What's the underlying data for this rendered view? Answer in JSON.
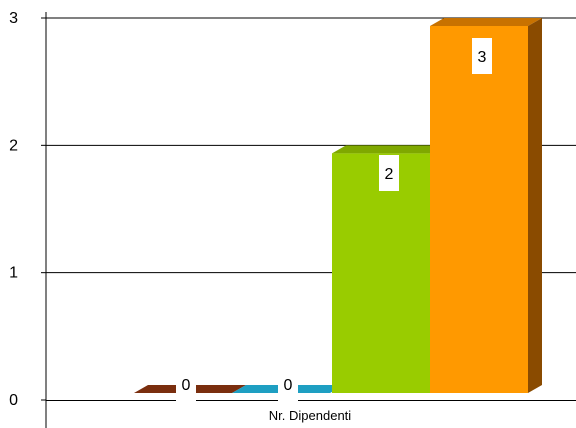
{
  "chart_data": {
    "type": "bar",
    "categories": [
      "Nr. Dipendenti"
    ],
    "series": [
      {
        "values": [
          0
        ],
        "color": "#7A2E0E",
        "side_color": "#5A200A",
        "top_color": "#8E3A14"
      },
      {
        "values": [
          0
        ],
        "color": "#1E9FC2",
        "side_color": "#157A96",
        "top_color": "#2BB2D6"
      },
      {
        "values": [
          2
        ],
        "color": "#99CC00",
        "side_color": "#6F9400",
        "top_color": "#7FA800"
      },
      {
        "values": [
          3
        ],
        "color": "#FF9900",
        "side_color": "#8A4B00",
        "top_color": "#C87200"
      }
    ],
    "data_labels": [
      "0",
      "0",
      "2",
      "3"
    ],
    "y_ticks": [
      "0",
      "1",
      "2",
      "3"
    ],
    "ylim": [
      0,
      3
    ],
    "grid": true,
    "title": "",
    "xlabel": "",
    "ylabel": ""
  }
}
